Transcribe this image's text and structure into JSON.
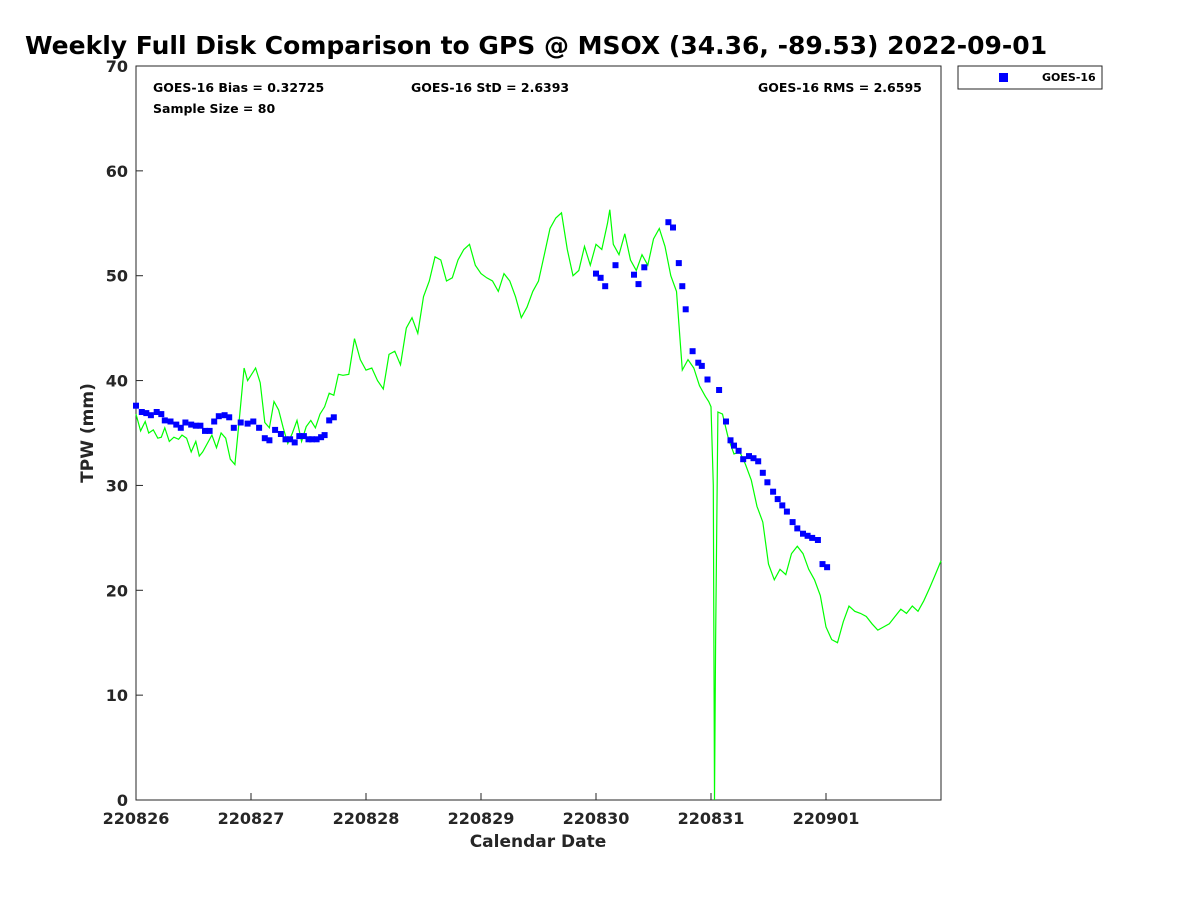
{
  "chart_data": {
    "type": "scatter",
    "title": "Weekly Full Disk Comparison to GPS @ MSOX (34.36, -89.53) 2022-09-01",
    "xlabel": "Calendar Date",
    "ylabel": "TPW (mm)",
    "xlim": [
      0,
      7
    ],
    "ylim": [
      0,
      70
    ],
    "x_tick_labels": [
      "220826",
      "220827",
      "220828",
      "220829",
      "220830",
      "220831",
      "220901"
    ],
    "y_ticks": [
      0,
      10,
      20,
      30,
      40,
      50,
      60,
      70
    ],
    "grid": false,
    "legend_position": "outside top-right",
    "stats": {
      "bias": "GOES-16 Bias = 0.32725",
      "std": "GOES-16 StD = 2.6393",
      "rms": "GOES-16 RMS = 2.6595",
      "sample": "Sample Size = 80"
    },
    "colors": {
      "goes": "#0000ff",
      "gps": "#00ff00"
    },
    "series": [
      {
        "name": "GOES-16",
        "style": "markers",
        "x": [
          0.0,
          0.05,
          0.09,
          0.13,
          0.18,
          0.22,
          0.25,
          0.3,
          0.35,
          0.39,
          0.43,
          0.48,
          0.52,
          0.56,
          0.6,
          0.64,
          0.68,
          0.72,
          0.77,
          0.81,
          0.85,
          0.91,
          0.97,
          1.02,
          1.07,
          1.12,
          1.16,
          1.21,
          1.26,
          1.3,
          1.34,
          1.38,
          1.42,
          1.46,
          1.5,
          1.53,
          1.57,
          1.61,
          1.64,
          1.68,
          1.72,
          4.0,
          4.04,
          4.08,
          4.17,
          4.33,
          4.37,
          4.42,
          4.63,
          4.67,
          4.72,
          4.75,
          4.78,
          4.84,
          4.89,
          4.92,
          4.97,
          5.07,
          5.13,
          5.17,
          5.2,
          5.24,
          5.28,
          5.33,
          5.37,
          5.41,
          5.45,
          5.49,
          5.54,
          5.58,
          5.62,
          5.66,
          5.71,
          5.75,
          5.8,
          5.84,
          5.88,
          5.93,
          5.97,
          6.01
        ],
        "y": [
          37.6,
          37.0,
          36.9,
          36.7,
          37.0,
          36.8,
          36.2,
          36.1,
          35.8,
          35.5,
          36.0,
          35.8,
          35.7,
          35.7,
          35.2,
          35.2,
          36.1,
          36.6,
          36.7,
          36.5,
          35.5,
          36.0,
          35.9,
          36.1,
          35.5,
          34.5,
          34.3,
          35.3,
          34.9,
          34.4,
          34.4,
          34.1,
          34.7,
          34.7,
          34.4,
          34.4,
          34.4,
          34.6,
          34.8,
          36.2,
          36.5,
          50.2,
          49.8,
          49.0,
          51.0,
          50.1,
          49.2,
          50.8,
          55.1,
          54.6,
          51.2,
          49.0,
          46.8,
          42.8,
          41.7,
          41.4,
          40.1,
          39.1,
          36.1,
          34.3,
          33.8,
          33.3,
          32.5,
          32.8,
          32.6,
          32.3,
          31.2,
          30.3,
          29.4,
          28.7,
          28.1,
          27.5,
          26.5,
          25.9,
          25.4,
          25.2,
          25.0,
          24.8,
          22.5,
          22.2
        ]
      },
      {
        "name": "GPS",
        "style": "line",
        "x": [
          0.0,
          0.04,
          0.08,
          0.11,
          0.15,
          0.19,
          0.22,
          0.25,
          0.29,
          0.33,
          0.37,
          0.4,
          0.44,
          0.48,
          0.52,
          0.55,
          0.58,
          0.62,
          0.66,
          0.7,
          0.74,
          0.78,
          0.82,
          0.86,
          0.9,
          0.94,
          0.97,
          1.0,
          1.04,
          1.08,
          1.12,
          1.16,
          1.2,
          1.24,
          1.28,
          1.32,
          1.36,
          1.4,
          1.44,
          1.48,
          1.52,
          1.56,
          1.6,
          1.64,
          1.68,
          1.72,
          1.76,
          1.8,
          1.85,
          1.9,
          1.95,
          2.0,
          2.05,
          2.1,
          2.15,
          2.2,
          2.25,
          2.3,
          2.35,
          2.4,
          2.45,
          2.5,
          2.55,
          2.6,
          2.65,
          2.7,
          2.75,
          2.8,
          2.85,
          2.9,
          2.95,
          3.0,
          3.05,
          3.1,
          3.15,
          3.2,
          3.25,
          3.3,
          3.35,
          3.4,
          3.45,
          3.5,
          3.55,
          3.6,
          3.65,
          3.7,
          3.75,
          3.8,
          3.85,
          3.9,
          3.95,
          4.0,
          4.05,
          4.1,
          4.12,
          4.15,
          4.2,
          4.25,
          4.3,
          4.35,
          4.4,
          4.45,
          4.5,
          4.55,
          4.6,
          4.65,
          4.7,
          4.75,
          4.8,
          4.85,
          4.9,
          4.95,
          4.98,
          5.0,
          5.02,
          5.03,
          5.04,
          5.06,
          5.1,
          5.15,
          5.2,
          5.25,
          5.3,
          5.35,
          5.4,
          5.45,
          5.5,
          5.55,
          5.6,
          5.65,
          5.7,
          5.75,
          5.8,
          5.85,
          5.9,
          5.95,
          6.0,
          6.05,
          6.1,
          6.15,
          6.2,
          6.25,
          6.3,
          6.35,
          6.4,
          6.45,
          6.5,
          6.55,
          6.6,
          6.65,
          6.7,
          6.75,
          6.8,
          6.85,
          6.9,
          6.95,
          7.0
        ],
        "y": [
          36.8,
          35.2,
          36.1,
          35.0,
          35.3,
          34.5,
          34.6,
          35.5,
          34.2,
          34.6,
          34.4,
          34.8,
          34.5,
          33.2,
          34.2,
          32.8,
          33.2,
          34.0,
          34.8,
          33.6,
          35.0,
          34.5,
          32.5,
          32.0,
          36.5,
          41.2,
          40.0,
          40.5,
          41.2,
          39.8,
          36.0,
          35.5,
          38.0,
          37.2,
          35.5,
          34.0,
          35.0,
          36.2,
          34.2,
          35.6,
          36.2,
          35.5,
          36.8,
          37.5,
          38.8,
          38.6,
          40.6,
          40.5,
          40.6,
          44.0,
          42.0,
          41.0,
          41.2,
          40.0,
          39.2,
          42.5,
          42.8,
          41.5,
          45.0,
          46.0,
          44.5,
          48.0,
          49.5,
          51.8,
          51.5,
          49.5,
          49.8,
          51.5,
          52.5,
          53.0,
          51.0,
          50.2,
          49.8,
          49.5,
          48.5,
          50.2,
          49.5,
          48.0,
          46.0,
          47.0,
          48.5,
          49.5,
          52.0,
          54.5,
          55.5,
          56.0,
          52.5,
          50.0,
          50.5,
          52.8,
          51.0,
          53.0,
          52.5,
          55.0,
          56.3,
          53.0,
          52.0,
          54.0,
          51.5,
          50.5,
          52.0,
          51.0,
          53.5,
          54.5,
          52.8,
          50.0,
          48.5,
          41.0,
          42.0,
          41.2,
          39.5,
          38.5,
          38.0,
          37.5,
          30.0,
          0.0,
          15.0,
          37.0,
          36.8,
          34.5,
          33.0,
          33.2,
          32.0,
          30.5,
          28.0,
          26.5,
          22.5,
          21.0,
          22.0,
          21.5,
          23.5,
          24.2,
          23.5,
          22.0,
          21.0,
          19.5,
          16.5,
          15.3,
          15.0,
          17.0,
          18.5,
          18.0,
          17.8,
          17.5,
          16.8,
          16.2,
          16.5,
          16.8,
          17.5,
          18.2,
          17.8,
          18.5,
          18.0,
          19.0,
          20.2,
          21.5,
          22.8
        ]
      }
    ]
  }
}
